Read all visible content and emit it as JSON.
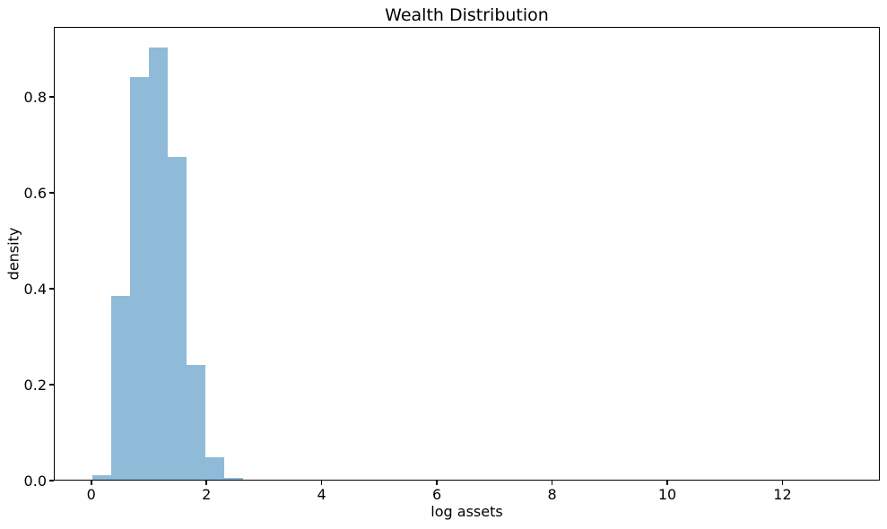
{
  "figure": {
    "background": "#ffffff",
    "text_color": "#000000",
    "spine_color": "#000000"
  },
  "chart_data": {
    "type": "bar",
    "subtype": "histogram",
    "title": "Wealth Distribution",
    "xlabel": "log assets",
    "ylabel": "density",
    "bar_color": "#8fbbd9",
    "bin_edges": [
      0.02,
      0.347,
      0.673,
      1.0,
      1.326,
      1.653,
      1.979,
      2.306,
      2.632,
      2.959
    ],
    "densities": [
      0.011,
      0.386,
      0.842,
      0.903,
      0.675,
      0.241,
      0.048,
      0.006,
      0.002
    ],
    "xlim": [
      -0.65,
      13.69
    ],
    "ylim": [
      0,
      0.946
    ],
    "xticks": [
      0,
      2,
      4,
      6,
      8,
      10,
      12
    ],
    "xtick_labels": [
      "0",
      "2",
      "4",
      "6",
      "8",
      "10",
      "12"
    ],
    "yticks": [
      0.0,
      0.2,
      0.4,
      0.6,
      0.8
    ],
    "ytick_labels": [
      "0.0",
      "0.2",
      "0.4",
      "0.6",
      "0.8"
    ],
    "grid": false,
    "legend": null
  }
}
